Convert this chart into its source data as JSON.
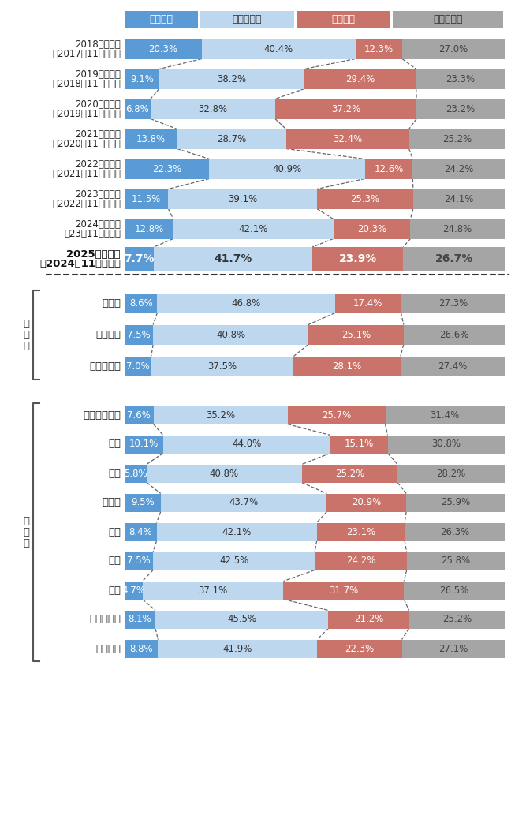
{
  "colors": {
    "kaifuku": "#5b9bd5",
    "odoriba": "#bdd7ee",
    "akka": "#c9736a",
    "wakaranai": "#a5a5a5",
    "bg": "#ffffff"
  },
  "legend_labels": [
    "回復局面",
    "踊り場局面",
    "悪化局面",
    "分からない"
  ],
  "yearly_labels": [
    [
      "2018年見通し",
      "（2017年11月調査）"
    ],
    [
      "2019年見通し",
      "（2018年11月調査）"
    ],
    [
      "2020年見通し",
      "（2019年11月調査）"
    ],
    [
      "2021年見通し",
      "（2020年11月調査）"
    ],
    [
      "2022年見通し",
      "（2021年11月調査）"
    ],
    [
      "2023年見通し",
      "（2022年11月調査）"
    ],
    [
      "2024年見通し",
      "（23年11月調査）"
    ],
    [
      "2025年見通し",
      "）2024年11月調査）"
    ]
  ],
  "yearly_kaifuku": [
    20.3,
    9.1,
    6.8,
    13.8,
    22.3,
    11.5,
    12.8,
    7.7
  ],
  "yearly_odoriba": [
    40.4,
    38.2,
    32.8,
    28.7,
    40.9,
    39.1,
    42.1,
    41.7
  ],
  "yearly_akka": [
    12.3,
    29.4,
    37.2,
    32.4,
    12.6,
    25.3,
    20.3,
    23.9
  ],
  "yearly_wakaranai": [
    27.0,
    23.3,
    23.2,
    25.2,
    24.2,
    24.1,
    24.8,
    26.7
  ],
  "scale_group_label": [
    "規",
    "模",
    "別"
  ],
  "scale_labels": [
    "大企業",
    "中小企業",
    "小規模企業"
  ],
  "scale_kaifuku": [
    8.6,
    7.5,
    7.0
  ],
  "scale_odoriba": [
    46.8,
    40.8,
    37.5
  ],
  "scale_akka": [
    17.4,
    25.1,
    28.1
  ],
  "scale_wakaranai": [
    27.3,
    26.6,
    27.4
  ],
  "industry_group_label": [
    "業",
    "界",
    "別"
  ],
  "industry_labels": [
    "農・林・水産",
    "金融",
    "建設",
    "不動産",
    "製造",
    "卧売",
    "小売",
    "運輸・倉庫",
    "サービス"
  ],
  "industry_kaifuku": [
    7.6,
    10.1,
    5.8,
    9.5,
    8.4,
    7.5,
    4.7,
    8.1,
    8.8
  ],
  "industry_odoriba": [
    35.2,
    44.0,
    40.8,
    43.7,
    42.1,
    42.5,
    37.1,
    45.5,
    41.9
  ],
  "industry_akka": [
    25.7,
    15.1,
    25.2,
    20.9,
    23.1,
    24.2,
    31.7,
    21.2,
    22.3
  ],
  "industry_wakaranai": [
    31.4,
    30.8,
    28.2,
    25.9,
    26.3,
    25.8,
    26.5,
    25.2,
    27.1
  ]
}
